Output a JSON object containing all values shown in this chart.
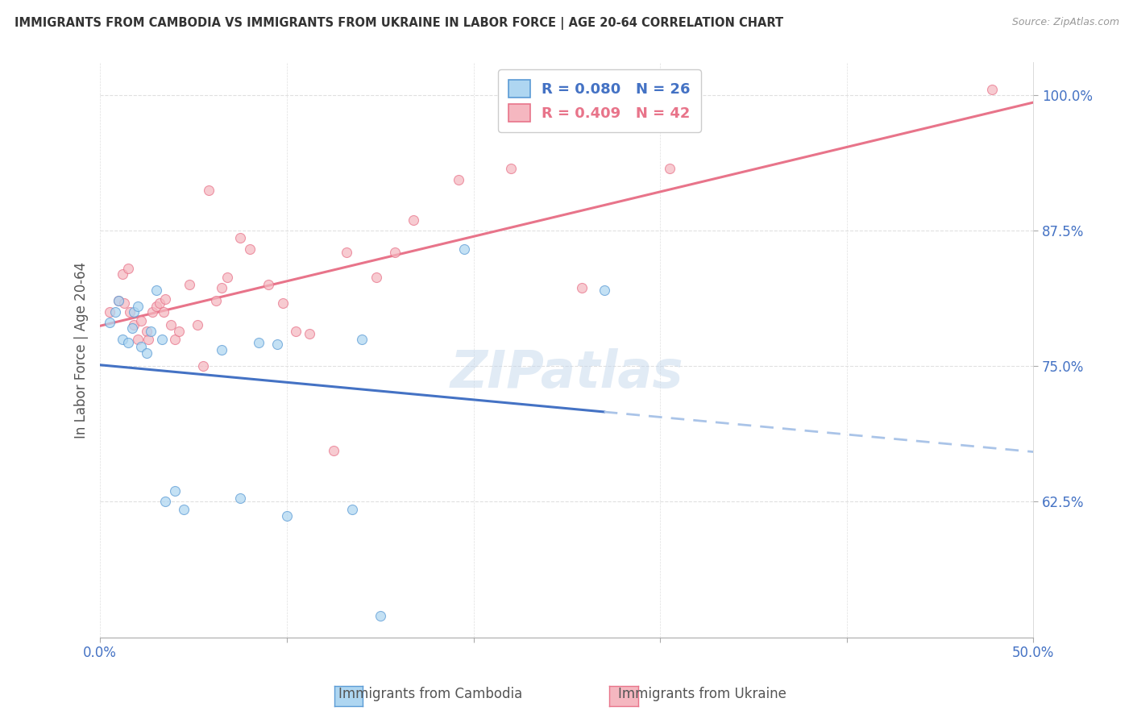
{
  "title": "IMMIGRANTS FROM CAMBODIA VS IMMIGRANTS FROM UKRAINE IN LABOR FORCE | AGE 20-64 CORRELATION CHART",
  "source": "Source: ZipAtlas.com",
  "ylabel_label": "In Labor Force | Age 20-64",
  "x_min": 0.0,
  "x_max": 0.5,
  "y_min": 0.5,
  "y_max": 1.03,
  "x_ticks": [
    0.0,
    0.1,
    0.2,
    0.3,
    0.4,
    0.5
  ],
  "x_tick_labels": [
    "0.0%",
    "",
    "",
    "",
    "",
    "50.0%"
  ],
  "y_ticks": [
    0.625,
    0.75,
    0.875,
    1.0
  ],
  "y_tick_labels": [
    "62.5%",
    "75.0%",
    "87.5%",
    "100.0%"
  ],
  "cambodia_fill_color": "#aed6f1",
  "ukraine_fill_color": "#f5b7c0",
  "cambodia_edge_color": "#5b9bd5",
  "ukraine_edge_color": "#e8748a",
  "cambodia_R": "0.080",
  "cambodia_N": "26",
  "ukraine_R": "0.409",
  "ukraine_N": "42",
  "trendline_cambodia_solid_color": "#4472c4",
  "trendline_cambodia_dashed_color": "#aac4e8",
  "trendline_ukraine_color": "#e8748a",
  "watermark": "ZIPatlas",
  "cambodia_x": [
    0.005,
    0.008,
    0.01,
    0.012,
    0.015,
    0.017,
    0.018,
    0.02,
    0.022,
    0.025,
    0.027,
    0.03,
    0.033,
    0.035,
    0.04,
    0.045,
    0.065,
    0.075,
    0.085,
    0.095,
    0.1,
    0.135,
    0.14,
    0.195,
    0.27,
    0.15
  ],
  "cambodia_y": [
    0.79,
    0.8,
    0.81,
    0.775,
    0.772,
    0.785,
    0.8,
    0.805,
    0.768,
    0.762,
    0.782,
    0.82,
    0.775,
    0.625,
    0.635,
    0.618,
    0.765,
    0.628,
    0.772,
    0.77,
    0.612,
    0.618,
    0.775,
    0.858,
    0.82,
    0.52
  ],
  "ukraine_x": [
    0.005,
    0.01,
    0.012,
    0.013,
    0.015,
    0.016,
    0.018,
    0.02,
    0.022,
    0.025,
    0.026,
    0.028,
    0.03,
    0.032,
    0.034,
    0.035,
    0.038,
    0.04,
    0.042,
    0.048,
    0.052,
    0.055,
    0.058,
    0.062,
    0.065,
    0.068,
    0.075,
    0.08,
    0.09,
    0.098,
    0.105,
    0.112,
    0.125,
    0.132,
    0.148,
    0.158,
    0.168,
    0.192,
    0.22,
    0.258,
    0.305,
    0.478
  ],
  "ukraine_y": [
    0.8,
    0.81,
    0.835,
    0.808,
    0.84,
    0.8,
    0.788,
    0.775,
    0.792,
    0.782,
    0.775,
    0.8,
    0.805,
    0.808,
    0.8,
    0.812,
    0.788,
    0.775,
    0.782,
    0.825,
    0.788,
    0.75,
    0.912,
    0.81,
    0.822,
    0.832,
    0.868,
    0.858,
    0.825,
    0.808,
    0.782,
    0.78,
    0.672,
    0.855,
    0.832,
    0.855,
    0.885,
    0.922,
    0.932,
    0.822,
    0.932,
    1.005
  ],
  "background_color": "#ffffff",
  "grid_color": "#e0e0e0",
  "marker_size": 75,
  "marker_alpha": 0.72
}
